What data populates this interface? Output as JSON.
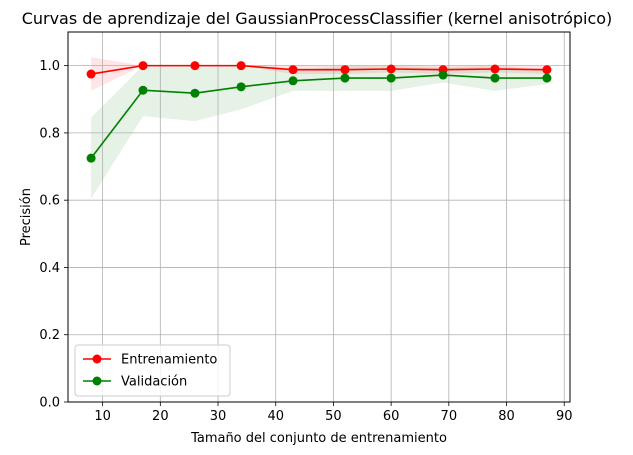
{
  "chart_data": {
    "type": "line",
    "title": "Curvas de aprendizaje del GaussianProcessClassifier (kernel anisotrópico)",
    "xlabel": "Tamaño del conjunto de entrenamiento",
    "ylabel": "Precisión",
    "xlim": [
      4,
      91
    ],
    "ylim": [
      0.0,
      1.1
    ],
    "xticks": [
      10,
      20,
      30,
      40,
      50,
      60,
      70,
      80,
      90
    ],
    "yticks": [
      0.0,
      0.2,
      0.4,
      0.6,
      0.8,
      1.0
    ],
    "ytick_labels": [
      "0.0",
      "0.2",
      "0.4",
      "0.6",
      "0.8",
      "1.0"
    ],
    "grid": true,
    "legend_position": "lower-left",
    "x": [
      8,
      17,
      26,
      34,
      43,
      52,
      60,
      69,
      78,
      87
    ],
    "series": [
      {
        "name": "Entrenamiento",
        "color": "#ff0000",
        "fill_color": "#ff0000",
        "values": [
          0.975,
          1.0,
          1.0,
          1.0,
          0.988,
          0.988,
          0.99,
          0.988,
          0.99,
          0.988
        ],
        "band_lower": [
          0.925,
          1.0,
          1.0,
          1.0,
          0.975,
          0.975,
          0.98,
          0.975,
          0.98,
          0.975
        ],
        "band_upper": [
          1.025,
          1.0,
          1.0,
          1.0,
          1.0,
          1.0,
          1.0,
          1.0,
          1.0,
          1.0
        ]
      },
      {
        "name": "Validación",
        "color": "#008000",
        "fill_color": "#008000",
        "values": [
          0.725,
          0.927,
          0.918,
          0.937,
          0.955,
          0.963,
          0.963,
          0.972,
          0.963,
          0.963
        ],
        "band_lower": [
          0.605,
          0.85,
          0.835,
          0.87,
          0.925,
          0.925,
          0.925,
          0.95,
          0.925,
          0.945
        ],
        "band_upper": [
          0.845,
          1.0,
          1.0,
          1.0,
          0.985,
          1.0,
          1.0,
          0.995,
          1.0,
          0.985
        ]
      }
    ]
  }
}
